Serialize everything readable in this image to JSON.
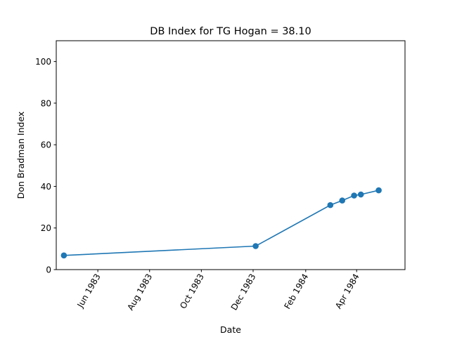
{
  "chart_data": {
    "type": "line",
    "title": "DB Index for TG Hogan = 38.10",
    "xlabel": "Date",
    "ylabel": "Don Bradman Index",
    "x_tick_labels": [
      "Jun 1983",
      "Aug 1983",
      "Oct 1983",
      "Dec 1983",
      "Feb 1984",
      "Apr 1984"
    ],
    "x_tick_dates": [
      "1983-06-01",
      "1983-08-01",
      "1983-10-01",
      "1983-12-01",
      "1984-02-01",
      "1984-04-01"
    ],
    "y_ticks": [
      0,
      20,
      40,
      60,
      80,
      100
    ],
    "xlim": [
      "1983-04-13",
      "1984-05-28"
    ],
    "ylim": [
      0,
      110
    ],
    "grid": false,
    "series": [
      {
        "color": "#1f77b4",
        "points": [
          {
            "x": "1983-04-22",
            "y": 6.8
          },
          {
            "x": "1983-12-04",
            "y": 11.3
          },
          {
            "x": "1984-03-01",
            "y": 31.0
          },
          {
            "x": "1984-03-15",
            "y": 33.2
          },
          {
            "x": "1984-03-29",
            "y": 35.6
          },
          {
            "x": "1984-04-06",
            "y": 36.1
          },
          {
            "x": "1984-04-27",
            "y": 38.1
          }
        ]
      }
    ]
  }
}
